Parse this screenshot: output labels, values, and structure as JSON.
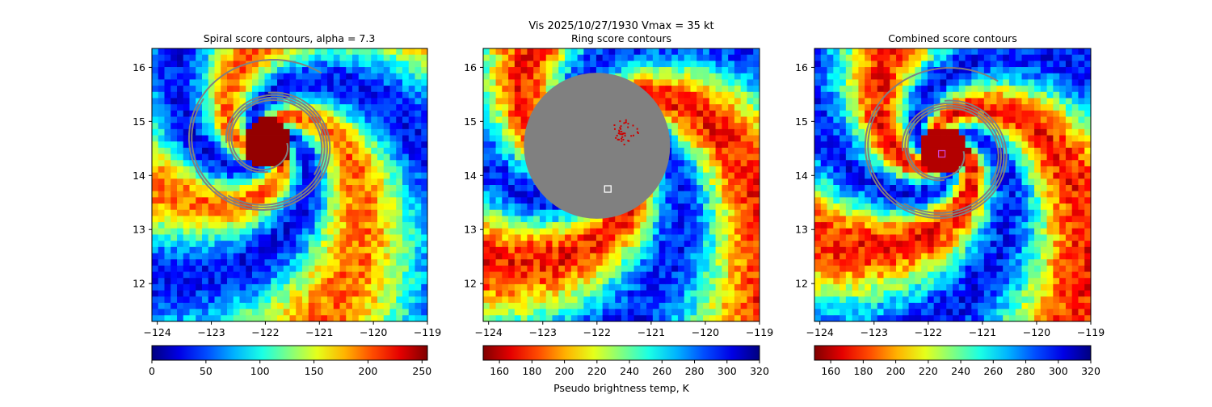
{
  "figure": {
    "suptitle_line1": "Vis  2025/10/27/1930    Vmax = 35 kt",
    "shared_xlabel": "Pseudo brightness temp, K"
  },
  "chart_data": [
    {
      "type": "heatmap",
      "title": "Spiral score contours, alpha =  7.3",
      "xlabel": "",
      "ylabel": "",
      "xlim": [
        -124.1,
        -119.0
      ],
      "ylim": [
        11.3,
        16.35
      ],
      "xticks": [
        "−124",
        "−123",
        "−122",
        "−121",
        "−120",
        "−119"
      ],
      "xtick_values": [
        -124,
        -123,
        -122,
        -121,
        -120,
        -119
      ],
      "yticks": [
        "12",
        "13",
        "14",
        "15",
        "16"
      ],
      "ytick_values": [
        12,
        13,
        14,
        15,
        16
      ],
      "colormap": "jet_r",
      "colorbar": {
        "vmin": 0,
        "vmax": 255,
        "ticks": [
          "0",
          "50",
          "100",
          "150",
          "200",
          "250"
        ],
        "tick_values": [
          0,
          50,
          100,
          150,
          200,
          250
        ],
        "label": ""
      },
      "eye": {
        "lon": -121.95,
        "lat": 14.6,
        "value": 250
      },
      "marker": null
    },
    {
      "type": "heatmap",
      "title": "Ring score contours",
      "xlabel": "",
      "ylabel": "",
      "xlim": [
        -124.1,
        -119.0
      ],
      "ylim": [
        11.3,
        16.35
      ],
      "xticks": [
        "−124",
        "−123",
        "−122",
        "−121",
        "−120",
        "−119"
      ],
      "xtick_values": [
        -124,
        -123,
        -122,
        -121,
        -120,
        -119
      ],
      "yticks": [
        "12",
        "13",
        "14",
        "15",
        "16"
      ],
      "ytick_values": [
        12,
        13,
        14,
        15,
        16
      ],
      "colormap": "jet",
      "colorbar": {
        "vmin": 150,
        "vmax": 320,
        "ticks": [
          "160",
          "180",
          "200",
          "220",
          "240",
          "260",
          "280",
          "300",
          "320"
        ],
        "tick_values": [
          160,
          180,
          200,
          220,
          240,
          260,
          280,
          300,
          320
        ],
        "label": "Pseudo brightness temp, K"
      },
      "masked_region": {
        "lon": -122.0,
        "lat": 14.55,
        "rx_deg": 1.35,
        "ry_deg": 1.35,
        "color": "#808080"
      },
      "marker": {
        "lon": -121.8,
        "lat": 13.75,
        "color": "#ffffff"
      }
    },
    {
      "type": "heatmap",
      "title": "Combined score contours",
      "xlabel": "",
      "ylabel": "",
      "xlim": [
        -124.1,
        -119.0
      ],
      "ylim": [
        11.3,
        16.35
      ],
      "xticks": [
        "−124",
        "−123",
        "−122",
        "−121",
        "−120",
        "−119"
      ],
      "xtick_values": [
        -124,
        -123,
        -122,
        -121,
        -120,
        -119
      ],
      "yticks": [
        "12",
        "13",
        "14",
        "15",
        "16"
      ],
      "ytick_values": [
        12,
        13,
        14,
        15,
        16
      ],
      "colormap": "jet",
      "colorbar": {
        "vmin": 150,
        "vmax": 320,
        "ticks": [
          "160",
          "180",
          "200",
          "220",
          "240",
          "260",
          "280",
          "300",
          "320"
        ],
        "tick_values": [
          160,
          180,
          200,
          220,
          240,
          260,
          280,
          300,
          320
        ],
        "label": ""
      },
      "eye": {
        "lon": -121.7,
        "lat": 14.45,
        "value": 160
      },
      "marker": {
        "lon": -121.75,
        "lat": 14.4,
        "color": "#cc44cc"
      }
    }
  ]
}
